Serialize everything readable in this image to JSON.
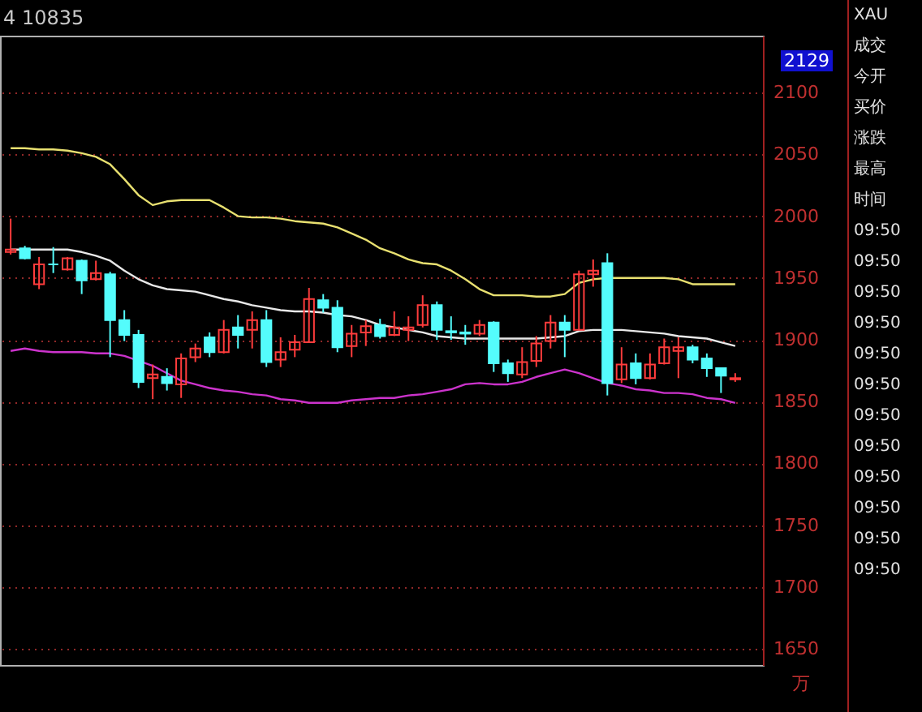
{
  "chart_data": {
    "type": "candlestick",
    "categories": [
      null,
      null,
      null,
      null,
      null,
      null,
      null,
      null,
      null,
      null,
      null,
      null,
      null,
      null,
      null,
      null,
      null,
      null,
      null,
      null,
      null,
      null,
      null,
      null,
      null,
      null,
      null,
      null,
      null,
      null,
      null,
      null,
      null,
      null,
      null,
      null,
      null,
      null,
      null,
      null,
      null,
      null,
      null,
      null,
      null,
      null,
      null,
      null,
      null,
      null,
      null,
      null
    ],
    "ohlc": [
      [
        1971,
        1998,
        1969,
        1973
      ],
      [
        1974,
        1976,
        1965,
        1966
      ],
      [
        1945,
        1967,
        1941,
        1961
      ],
      [
        1961,
        1975,
        1954,
        1961
      ],
      [
        1957,
        1967,
        1956,
        1966
      ],
      [
        1964,
        1965,
        1937,
        1948
      ],
      [
        1949,
        1964,
        1948,
        1954
      ],
      [
        1953,
        1955,
        1886,
        1916
      ],
      [
        1916,
        1924,
        1899,
        1904
      ],
      [
        1904,
        1908,
        1861,
        1866
      ],
      [
        1869,
        1880,
        1852,
        1872
      ],
      [
        1870,
        1877,
        1859,
        1865
      ],
      [
        1864,
        1889,
        1853,
        1885
      ],
      [
        1886,
        1897,
        1882,
        1893
      ],
      [
        1902,
        1906,
        1886,
        1890
      ],
      [
        1890,
        1916,
        1889,
        1908
      ],
      [
        1910,
        1920,
        1893,
        1904
      ],
      [
        1908,
        1923,
        1893,
        1916
      ],
      [
        1916,
        1924,
        1878,
        1882
      ],
      [
        1884,
        1902,
        1878,
        1890
      ],
      [
        1892,
        1904,
        1886,
        1898
      ],
      [
        1898,
        1942,
        1898,
        1933
      ],
      [
        1932,
        1937,
        1922,
        1926
      ],
      [
        1926,
        1932,
        1890,
        1894
      ],
      [
        1895,
        1912,
        1886,
        1905
      ],
      [
        1906,
        1916,
        1895,
        1911
      ],
      [
        1912,
        1917,
        1901,
        1903
      ],
      [
        1904,
        1923,
        1903,
        1910
      ],
      [
        1908,
        1919,
        1899,
        1910
      ],
      [
        1912,
        1936,
        1910,
        1928
      ],
      [
        1928,
        1931,
        1900,
        1908
      ],
      [
        1907,
        1919,
        1900,
        1906
      ],
      [
        1906,
        1912,
        1896,
        1905
      ],
      [
        1905,
        1916,
        1903,
        1912
      ],
      [
        1914,
        1915,
        1874,
        1881
      ],
      [
        1881,
        1884,
        1866,
        1873
      ],
      [
        1872,
        1894,
        1869,
        1882
      ],
      [
        1883,
        1903,
        1878,
        1897
      ],
      [
        1899,
        1920,
        1893,
        1914
      ],
      [
        1914,
        1920,
        1886,
        1908
      ],
      [
        1908,
        1956,
        1908,
        1953
      ],
      [
        1953,
        1965,
        1943,
        1956
      ],
      [
        1962,
        1970,
        1855,
        1865
      ],
      [
        1868,
        1894,
        1865,
        1880
      ],
      [
        1881,
        1889,
        1864,
        1869
      ],
      [
        1869,
        1889,
        1868,
        1880
      ],
      [
        1881,
        1901,
        1880,
        1894
      ],
      [
        1891,
        1902,
        1869,
        1894
      ],
      [
        1894,
        1896,
        1881,
        1884
      ],
      [
        1885,
        1889,
        1870,
        1877
      ],
      [
        1877,
        1877,
        1857,
        1871
      ],
      [
        1868,
        1873,
        1866,
        1869
      ]
    ],
    "colors": [
      "#ff3c3c",
      "#54fcfc",
      "#ff3c3c",
      "#54fcfc",
      "#ff3c3c",
      "#54fcfc",
      "#ff3c3c",
      "#54fcfc",
      "#54fcfc",
      "#54fcfc",
      "#ff3c3c",
      "#54fcfc",
      "#ff3c3c",
      "#ff3c3c",
      "#54fcfc",
      "#ff3c3c",
      "#54fcfc",
      "#ff3c3c",
      "#54fcfc",
      "#ff3c3c",
      "#ff3c3c",
      "#ff3c3c",
      "#54fcfc",
      "#54fcfc",
      "#ff3c3c",
      "#ff3c3c",
      "#54fcfc",
      "#ff3c3c",
      "#ff3c3c",
      "#ff3c3c",
      "#54fcfc",
      "#54fcfc",
      "#54fcfc",
      "#ff3c3c",
      "#54fcfc",
      "#54fcfc",
      "#ff3c3c",
      "#ff3c3c",
      "#ff3c3c",
      "#54fcfc",
      "#ff3c3c",
      "#ff3c3c",
      "#54fcfc",
      "#ff3c3c",
      "#54fcfc",
      "#ff3c3c",
      "#ff3c3c",
      "#ff3c3c",
      "#54fcfc",
      "#54fcfc",
      "#54fcfc",
      "#ff3c3c"
    ],
    "series": [
      {
        "type": "line",
        "color": "#e8e070",
        "values": [
          2055,
          2055,
          2054,
          2054,
          2053,
          2051,
          2048,
          2042,
          2030,
          2017,
          2009,
          2012,
          2013,
          2013,
          2013,
          2007,
          2000,
          1999,
          1999,
          1998,
          1996,
          1995,
          1994,
          1991,
          1986,
          1981,
          1974,
          1970,
          1965,
          1962,
          1961,
          1956,
          1949,
          1941,
          1936,
          1936,
          1936,
          1935,
          1935,
          1937,
          1946,
          1949,
          1950,
          1950,
          1950,
          1950,
          1950,
          1949,
          1945,
          1945,
          1945,
          1945
        ]
      },
      {
        "type": "line",
        "color": "#e8e8e8",
        "values": [
          1973,
          1973,
          1973,
          1973,
          1973,
          1971,
          1968,
          1964,
          1956,
          1949,
          1944,
          1941,
          1940,
          1939,
          1936,
          1933,
          1931,
          1928,
          1926,
          1924,
          1923,
          1923,
          1922,
          1920,
          1919,
          1916,
          1912,
          1910,
          1908,
          1906,
          1903,
          1902,
          1901,
          1901,
          1901,
          1901,
          1901,
          1901,
          1902,
          1903,
          1907,
          1908,
          1908,
          1908,
          1907,
          1906,
          1905,
          1903,
          1902,
          1901,
          1898,
          1895
        ]
      },
      {
        "type": "line",
        "color": "#cc33cc",
        "values": [
          1891,
          1893,
          1891,
          1890,
          1890,
          1890,
          1889,
          1889,
          1887,
          1883,
          1879,
          1873,
          1867,
          1864,
          1861,
          1859,
          1858,
          1856,
          1855,
          1852,
          1851,
          1849,
          1849,
          1849,
          1851,
          1852,
          1853,
          1853,
          1855,
          1856,
          1858,
          1860,
          1864,
          1865,
          1864,
          1864,
          1866,
          1870,
          1873,
          1876,
          1873,
          1869,
          1865,
          1863,
          1860,
          1859,
          1857,
          1857,
          1856,
          1853,
          1852,
          1849
        ]
      }
    ],
    "ylim": [
      1637,
      2146
    ],
    "yticks": [
      1650,
      1700,
      1750,
      1800,
      1850,
      1900,
      1950,
      2000,
      2050,
      2100
    ],
    "grid": "y",
    "tick_labels": "y",
    "annotations": [
      "4 10835",
      "2129",
      "万",
      "XAU",
      "成交",
      "今开",
      "买价",
      "涨跌",
      "最高",
      "时间",
      "09:50",
      "09:50",
      "09:50",
      "09:50",
      "09:50",
      "09:50",
      "09:50",
      "09:50",
      "09:50",
      "09:50",
      "09:50",
      "09:50"
    ]
  }
}
